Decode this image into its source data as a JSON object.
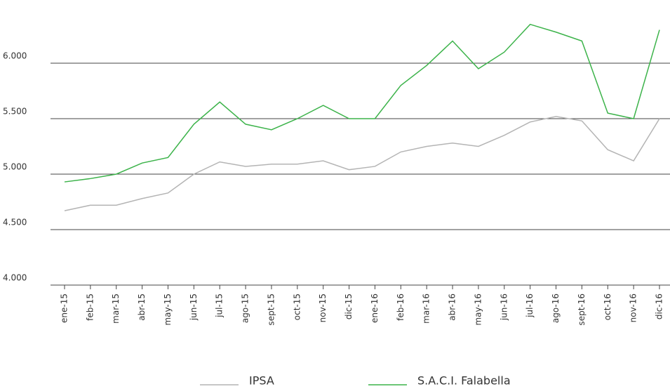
{
  "chart_data": {
    "type": "line",
    "categories": [
      "ene-15",
      "feb-15",
      "mar-15",
      "abr-15",
      "may-15",
      "jun-15",
      "jul-15",
      "ago-15",
      "sept-15",
      "oct-15",
      "nov-15",
      "dic-15",
      "ene-16",
      "feb-16",
      "mar-16",
      "abr-16",
      "may-16",
      "jun-16",
      "jul-16",
      "ago-16",
      "sept-16",
      "oct-16",
      "nov-16",
      "dic-16"
    ],
    "series": [
      {
        "name": "IPSA",
        "color": "#b4b4b4",
        "values": [
          4670,
          4720,
          4720,
          4780,
          4830,
          5000,
          5110,
          5070,
          5090,
          5090,
          5120,
          5040,
          5070,
          5200,
          5250,
          5280,
          5250,
          5350,
          5470,
          5520,
          5480,
          5220,
          5120,
          5500
        ]
      },
      {
        "name": "S.A.C.I. Falabella",
        "color": "#3cb34a",
        "values": [
          4930,
          4960,
          5000,
          5100,
          5150,
          5450,
          5650,
          5450,
          5400,
          5500,
          5620,
          5500,
          5500,
          5800,
          5980,
          6200,
          5950,
          6100,
          6350,
          6280,
          6200,
          5550,
          5500,
          6300
        ]
      }
    ],
    "ylim": [
      4000,
      6500
    ],
    "yticks": [
      {
        "value": 4000,
        "label": "4.000"
      },
      {
        "value": 4500,
        "label": "4.500"
      },
      {
        "value": 5000,
        "label": "5.000"
      },
      {
        "value": 5500,
        "label": "5.500"
      },
      {
        "value": 6000,
        "label": "6.000"
      }
    ],
    "grid": true
  }
}
